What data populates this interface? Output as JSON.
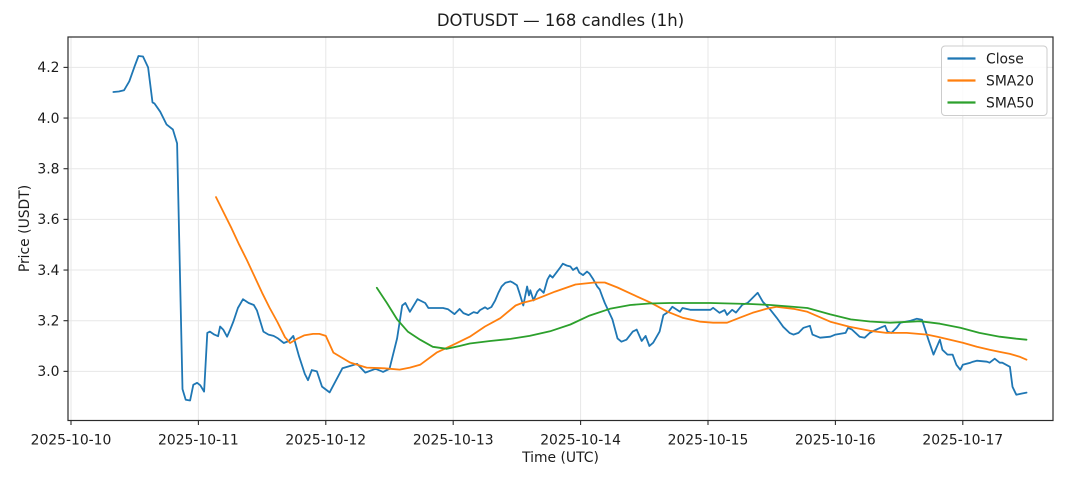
{
  "figure": {
    "title": "DOTUSDT — 168 candles (1h)",
    "xlabel": "Time (UTC)",
    "ylabel": "Price (USDT)"
  },
  "chart_data": {
    "type": "line",
    "title": "DOTUSDT — 168 candles (1h)",
    "xlabel": "Time (UTC)",
    "ylabel": "Price (USDT)",
    "symbol": "DOTUSDT",
    "candle_count": 168,
    "interval": "1h",
    "x_unit": "days since 2025-10-10 00:00 UTC",
    "xlim": [
      -0.0235,
      7.708
    ],
    "ylim": [
      2.806,
      4.32
    ],
    "grid": true,
    "legend_position": "upper right",
    "background_color": "#ffffff",
    "grid_color": "#e7e7e7",
    "x_ticks": {
      "positions": [
        0,
        1,
        2,
        3,
        4,
        5,
        6,
        7
      ],
      "labels": [
        "2025-10-10",
        "2025-10-11",
        "2025-10-12",
        "2025-10-13",
        "2025-10-14",
        "2025-10-15",
        "2025-10-16",
        "2025-10-17"
      ]
    },
    "y_ticks": [
      3.0,
      3.2,
      3.4,
      3.6,
      3.8,
      4.0,
      4.2
    ],
    "series": [
      {
        "name": "Close",
        "color": "#1f77b4",
        "points": [
          [
            0.333,
            4.103
          ],
          [
            0.375,
            4.105
          ],
          [
            0.417,
            4.11
          ],
          [
            0.458,
            4.145
          ],
          [
            0.5,
            4.205
          ],
          [
            0.53,
            4.245
          ],
          [
            0.565,
            4.243
          ],
          [
            0.605,
            4.2
          ],
          [
            0.64,
            4.062
          ],
          [
            0.655,
            4.058
          ],
          [
            0.7,
            4.025
          ],
          [
            0.75,
            3.975
          ],
          [
            0.8,
            3.955
          ],
          [
            0.833,
            3.9
          ],
          [
            0.875,
            2.93
          ],
          [
            0.9,
            2.888
          ],
          [
            0.935,
            2.885
          ],
          [
            0.96,
            2.947
          ],
          [
            0.99,
            2.955
          ],
          [
            1.015,
            2.945
          ],
          [
            1.045,
            2.92
          ],
          [
            1.07,
            3.152
          ],
          [
            1.09,
            3.157
          ],
          [
            1.125,
            3.145
          ],
          [
            1.155,
            3.139
          ],
          [
            1.17,
            3.177
          ],
          [
            1.195,
            3.165
          ],
          [
            1.225,
            3.137
          ],
          [
            1.25,
            3.165
          ],
          [
            1.275,
            3.197
          ],
          [
            1.31,
            3.25
          ],
          [
            1.35,
            3.285
          ],
          [
            1.395,
            3.27
          ],
          [
            1.435,
            3.262
          ],
          [
            1.46,
            3.24
          ],
          [
            1.51,
            3.157
          ],
          [
            1.55,
            3.145
          ],
          [
            1.59,
            3.14
          ],
          [
            1.625,
            3.13
          ],
          [
            1.67,
            3.112
          ],
          [
            1.71,
            3.12
          ],
          [
            1.745,
            3.14
          ],
          [
            1.79,
            3.06
          ],
          [
            1.835,
            2.99
          ],
          [
            1.86,
            2.965
          ],
          [
            1.89,
            3.005
          ],
          [
            1.93,
            3.0
          ],
          [
            1.97,
            2.94
          ],
          [
            2.03,
            2.917
          ],
          [
            2.13,
            3.012
          ],
          [
            2.21,
            3.024
          ],
          [
            2.245,
            3.03
          ],
          [
            2.31,
            2.995
          ],
          [
            2.39,
            3.01
          ],
          [
            2.45,
            2.998
          ],
          [
            2.5,
            3.01
          ],
          [
            2.56,
            3.13
          ],
          [
            2.6,
            3.26
          ],
          [
            2.625,
            3.27
          ],
          [
            2.66,
            3.235
          ],
          [
            2.72,
            3.285
          ],
          [
            2.78,
            3.27
          ],
          [
            2.805,
            3.25
          ],
          [
            2.92,
            3.25
          ],
          [
            2.96,
            3.245
          ],
          [
            3.01,
            3.226
          ],
          [
            3.05,
            3.246
          ],
          [
            3.08,
            3.23
          ],
          [
            3.12,
            3.222
          ],
          [
            3.16,
            3.234
          ],
          [
            3.19,
            3.23
          ],
          [
            3.21,
            3.242
          ],
          [
            3.25,
            3.253
          ],
          [
            3.27,
            3.246
          ],
          [
            3.3,
            3.254
          ],
          [
            3.33,
            3.28
          ],
          [
            3.355,
            3.31
          ],
          [
            3.38,
            3.335
          ],
          [
            3.41,
            3.35
          ],
          [
            3.45,
            3.355
          ],
          [
            3.47,
            3.35
          ],
          [
            3.5,
            3.34
          ],
          [
            3.52,
            3.31
          ],
          [
            3.55,
            3.26
          ],
          [
            3.58,
            3.335
          ],
          [
            3.595,
            3.3
          ],
          [
            3.605,
            3.32
          ],
          [
            3.63,
            3.28
          ],
          [
            3.66,
            3.315
          ],
          [
            3.68,
            3.325
          ],
          [
            3.71,
            3.31
          ],
          [
            3.74,
            3.363
          ],
          [
            3.76,
            3.38
          ],
          [
            3.78,
            3.37
          ],
          [
            3.81,
            3.39
          ],
          [
            3.84,
            3.41
          ],
          [
            3.86,
            3.425
          ],
          [
            3.89,
            3.418
          ],
          [
            3.92,
            3.414
          ],
          [
            3.94,
            3.4
          ],
          [
            3.97,
            3.41
          ],
          [
            3.99,
            3.39
          ],
          [
            4.02,
            3.38
          ],
          [
            4.05,
            3.394
          ],
          [
            4.07,
            3.386
          ],
          [
            4.1,
            3.363
          ],
          [
            4.13,
            3.335
          ],
          [
            4.15,
            3.323
          ],
          [
            4.17,
            3.295
          ],
          [
            4.19,
            3.27
          ],
          [
            4.25,
            3.205
          ],
          [
            4.29,
            3.13
          ],
          [
            4.32,
            3.117
          ],
          [
            4.36,
            3.125
          ],
          [
            4.41,
            3.157
          ],
          [
            4.44,
            3.165
          ],
          [
            4.48,
            3.12
          ],
          [
            4.51,
            3.14
          ],
          [
            4.54,
            3.1
          ],
          [
            4.57,
            3.113
          ],
          [
            4.62,
            3.157
          ],
          [
            4.65,
            3.222
          ],
          [
            4.69,
            3.235
          ],
          [
            4.72,
            3.255
          ],
          [
            4.78,
            3.235
          ],
          [
            4.8,
            3.25
          ],
          [
            4.86,
            3.243
          ],
          [
            4.94,
            3.243
          ],
          [
            5.02,
            3.243
          ],
          [
            5.04,
            3.251
          ],
          [
            5.09,
            3.231
          ],
          [
            5.13,
            3.242
          ],
          [
            5.15,
            3.223
          ],
          [
            5.19,
            3.243
          ],
          [
            5.22,
            3.232
          ],
          [
            5.27,
            3.263
          ],
          [
            5.31,
            3.27
          ],
          [
            5.39,
            3.31
          ],
          [
            5.43,
            3.275
          ],
          [
            5.49,
            3.243
          ],
          [
            5.54,
            3.211
          ],
          [
            5.59,
            3.176
          ],
          [
            5.64,
            3.152
          ],
          [
            5.67,
            3.145
          ],
          [
            5.71,
            3.152
          ],
          [
            5.75,
            3.172
          ],
          [
            5.8,
            3.18
          ],
          [
            5.82,
            3.145
          ],
          [
            5.88,
            3.133
          ],
          [
            5.96,
            3.137
          ],
          [
            6.0,
            3.145
          ],
          [
            6.08,
            3.152
          ],
          [
            6.1,
            3.172
          ],
          [
            6.13,
            3.165
          ],
          [
            6.19,
            3.137
          ],
          [
            6.23,
            3.133
          ],
          [
            6.27,
            3.152
          ],
          [
            6.3,
            3.16
          ],
          [
            6.37,
            3.176
          ],
          [
            6.39,
            3.18
          ],
          [
            6.41,
            3.156
          ],
          [
            6.44,
            3.152
          ],
          [
            6.48,
            3.172
          ],
          [
            6.51,
            3.192
          ],
          [
            6.55,
            3.196
          ],
          [
            6.59,
            3.2
          ],
          [
            6.64,
            3.208
          ],
          [
            6.68,
            3.204
          ],
          [
            6.7,
            3.172
          ],
          [
            6.73,
            3.125
          ],
          [
            6.77,
            3.066
          ],
          [
            6.81,
            3.113
          ],
          [
            6.82,
            3.125
          ],
          [
            6.84,
            3.085
          ],
          [
            6.88,
            3.066
          ],
          [
            6.92,
            3.066
          ],
          [
            6.95,
            3.026
          ],
          [
            6.98,
            3.006
          ],
          [
            7.0,
            3.026
          ],
          [
            7.06,
            3.034
          ],
          [
            7.08,
            3.038
          ],
          [
            7.11,
            3.042
          ],
          [
            7.19,
            3.038
          ],
          [
            7.21,
            3.034
          ],
          [
            7.25,
            3.05
          ],
          [
            7.29,
            3.034
          ],
          [
            7.31,
            3.034
          ],
          [
            7.37,
            3.018
          ],
          [
            7.39,
            2.939
          ],
          [
            7.42,
            2.908
          ],
          [
            7.46,
            2.912
          ],
          [
            7.5,
            2.916
          ]
        ]
      },
      {
        "name": "SMA20",
        "color": "#ff7f0e",
        "points": [
          [
            1.138,
            3.688
          ],
          [
            1.2,
            3.625
          ],
          [
            1.26,
            3.565
          ],
          [
            1.32,
            3.5
          ],
          [
            1.38,
            3.44
          ],
          [
            1.44,
            3.375
          ],
          [
            1.5,
            3.31
          ],
          [
            1.56,
            3.25
          ],
          [
            1.62,
            3.195
          ],
          [
            1.68,
            3.135
          ],
          [
            1.72,
            3.112
          ],
          [
            1.78,
            3.13
          ],
          [
            1.83,
            3.142
          ],
          [
            1.9,
            3.148
          ],
          [
            1.95,
            3.148
          ],
          [
            2.0,
            3.14
          ],
          [
            2.06,
            3.074
          ],
          [
            2.19,
            3.035
          ],
          [
            2.32,
            3.015
          ],
          [
            2.46,
            3.012
          ],
          [
            2.58,
            3.007
          ],
          [
            2.66,
            3.015
          ],
          [
            2.74,
            3.026
          ],
          [
            2.87,
            3.074
          ],
          [
            3.0,
            3.105
          ],
          [
            3.13,
            3.137
          ],
          [
            3.25,
            3.177
          ],
          [
            3.37,
            3.21
          ],
          [
            3.49,
            3.26
          ],
          [
            3.54,
            3.27
          ],
          [
            3.64,
            3.283
          ],
          [
            3.8,
            3.315
          ],
          [
            3.96,
            3.343
          ],
          [
            4.11,
            3.351
          ],
          [
            4.19,
            3.351
          ],
          [
            4.29,
            3.331
          ],
          [
            4.41,
            3.303
          ],
          [
            4.55,
            3.271
          ],
          [
            4.68,
            3.236
          ],
          [
            4.8,
            3.212
          ],
          [
            4.94,
            3.196
          ],
          [
            5.04,
            3.192
          ],
          [
            5.15,
            3.192
          ],
          [
            5.25,
            3.212
          ],
          [
            5.35,
            3.231
          ],
          [
            5.46,
            3.247
          ],
          [
            5.54,
            3.255
          ],
          [
            5.67,
            3.247
          ],
          [
            5.78,
            3.235
          ],
          [
            5.96,
            3.196
          ],
          [
            6.11,
            3.176
          ],
          [
            6.27,
            3.16
          ],
          [
            6.4,
            3.152
          ],
          [
            6.56,
            3.152
          ],
          [
            6.72,
            3.145
          ],
          [
            6.8,
            3.137
          ],
          [
            6.9,
            3.125
          ],
          [
            7.0,
            3.113
          ],
          [
            7.11,
            3.097
          ],
          [
            7.21,
            3.085
          ],
          [
            7.29,
            3.077
          ],
          [
            7.37,
            3.069
          ],
          [
            7.45,
            3.057
          ],
          [
            7.5,
            3.046
          ]
        ]
      },
      {
        "name": "SMA50",
        "color": "#2ca02c",
        "points": [
          [
            2.4,
            3.33
          ],
          [
            2.48,
            3.27
          ],
          [
            2.56,
            3.205
          ],
          [
            2.645,
            3.156
          ],
          [
            2.74,
            3.125
          ],
          [
            2.84,
            3.097
          ],
          [
            2.95,
            3.089
          ],
          [
            3.05,
            3.1
          ],
          [
            3.13,
            3.11
          ],
          [
            3.29,
            3.12
          ],
          [
            3.45,
            3.128
          ],
          [
            3.6,
            3.14
          ],
          [
            3.76,
            3.158
          ],
          [
            3.92,
            3.185
          ],
          [
            4.07,
            3.22
          ],
          [
            4.23,
            3.247
          ],
          [
            4.39,
            3.262
          ],
          [
            4.54,
            3.268
          ],
          [
            4.7,
            3.27
          ],
          [
            4.86,
            3.27
          ],
          [
            5.02,
            3.27
          ],
          [
            5.17,
            3.268
          ],
          [
            5.33,
            3.266
          ],
          [
            5.49,
            3.262
          ],
          [
            5.64,
            3.256
          ],
          [
            5.78,
            3.25
          ],
          [
            5.96,
            3.225
          ],
          [
            6.12,
            3.205
          ],
          [
            6.27,
            3.197
          ],
          [
            6.43,
            3.192
          ],
          [
            6.59,
            3.196
          ],
          [
            6.66,
            3.198
          ],
          [
            6.82,
            3.188
          ],
          [
            6.98,
            3.172
          ],
          [
            7.13,
            3.152
          ],
          [
            7.29,
            3.137
          ],
          [
            7.42,
            3.129
          ],
          [
            7.5,
            3.125
          ]
        ]
      }
    ]
  }
}
